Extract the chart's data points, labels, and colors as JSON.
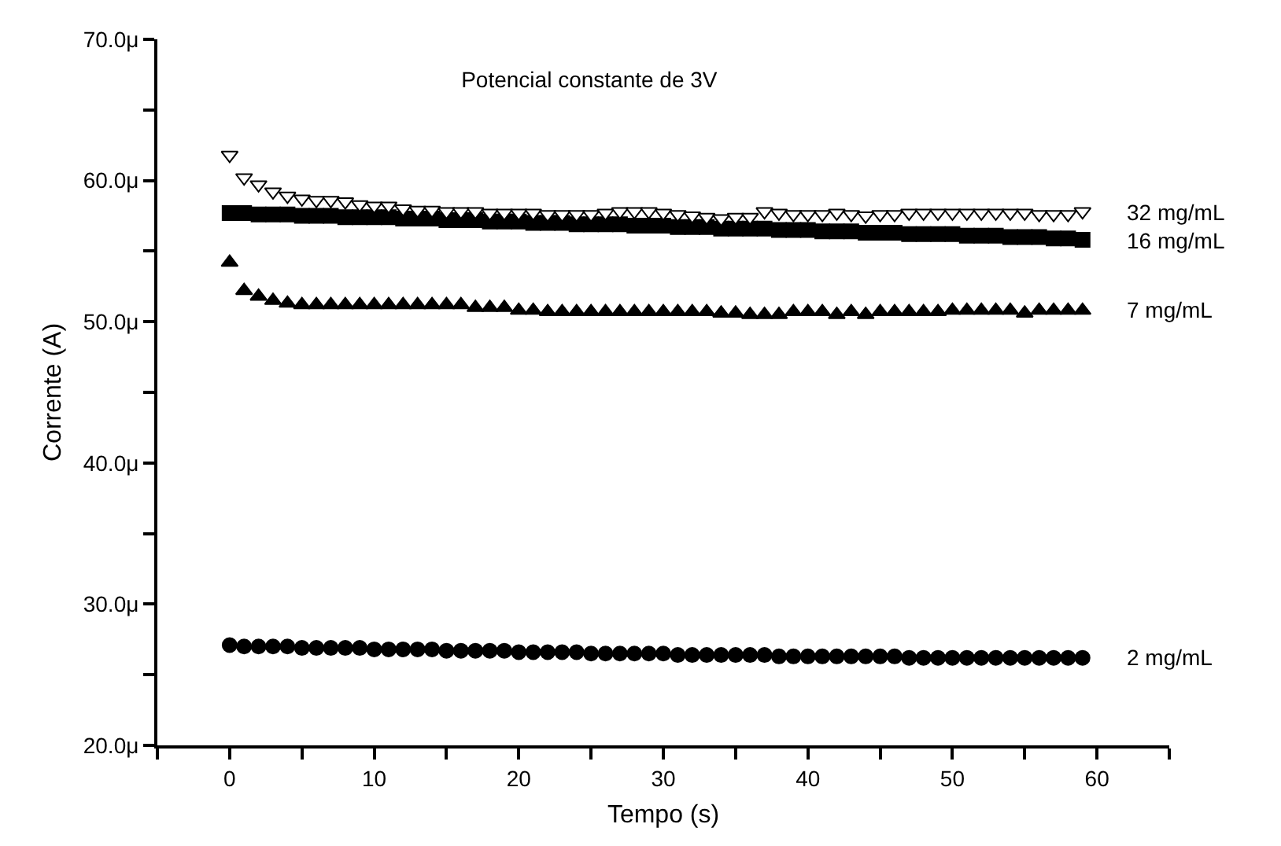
{
  "chart_data": {
    "type": "scatter",
    "title": "Potencial constante de 3V",
    "xlabel": "Tempo (s)",
    "ylabel": "Corrente (A)",
    "x": [
      0,
      1,
      2,
      3,
      4,
      5,
      6,
      7,
      8,
      9,
      10,
      11,
      12,
      13,
      14,
      15,
      16,
      17,
      18,
      19,
      20,
      21,
      22,
      23,
      24,
      25,
      26,
      27,
      28,
      29,
      30,
      31,
      32,
      33,
      34,
      35,
      36,
      37,
      38,
      39,
      40,
      41,
      42,
      43,
      44,
      45,
      46,
      47,
      48,
      49,
      50,
      51,
      52,
      53,
      54,
      55,
      56,
      57,
      58,
      59
    ],
    "xlim": [
      -5,
      65
    ],
    "xticks": [
      {
        "value": -5,
        "label": null
      },
      0,
      {
        "value": 5,
        "label": null
      },
      10,
      {
        "value": 15,
        "label": null
      },
      20,
      {
        "value": 25,
        "label": null
      },
      30,
      {
        "value": 35,
        "label": null
      },
      40,
      {
        "value": 45,
        "label": null
      },
      50,
      {
        "value": 55,
        "label": null
      },
      60,
      {
        "value": 65,
        "label": null
      }
    ],
    "ylim": [
      20,
      70
    ],
    "yticks": [
      {
        "value": 20,
        "label": "20.0μ"
      },
      {
        "value": 25,
        "label": null
      },
      {
        "value": 30,
        "label": "30.0μ"
      },
      {
        "value": 35,
        "label": null
      },
      {
        "value": 40,
        "label": "40.0μ"
      },
      {
        "value": 45,
        "label": null
      },
      {
        "value": 50,
        "label": "50.0μ"
      },
      {
        "value": 55,
        "label": null
      },
      {
        "value": 60,
        "label": "60.0μ"
      },
      {
        "value": 65,
        "label": null
      },
      {
        "value": 70,
        "label": "70.0μ"
      }
    ],
    "grid": false,
    "legend": false,
    "series": [
      {
        "name": "32 mg/mL",
        "color": "#ffffff",
        "marker": "triangle-down",
        "values": [
          61.8,
          60.2,
          59.7,
          59.2,
          58.9,
          58.7,
          58.6,
          58.6,
          58.5,
          58.3,
          58.2,
          58.2,
          58.0,
          57.9,
          57.9,
          57.8,
          57.8,
          57.8,
          57.7,
          57.7,
          57.7,
          57.7,
          57.6,
          57.6,
          57.6,
          57.6,
          57.7,
          57.8,
          57.8,
          57.8,
          57.7,
          57.6,
          57.5,
          57.4,
          57.3,
          57.4,
          57.4,
          57.8,
          57.7,
          57.6,
          57.6,
          57.6,
          57.7,
          57.6,
          57.5,
          57.6,
          57.6,
          57.7,
          57.7,
          57.7,
          57.7,
          57.7,
          57.7,
          57.7,
          57.7,
          57.7,
          57.6,
          57.6,
          57.6,
          57.8
        ]
      },
      {
        "name": "16 mg/mL",
        "color": "#000000",
        "marker": "square",
        "values": [
          57.7,
          57.7,
          57.6,
          57.6,
          57.6,
          57.5,
          57.5,
          57.5,
          57.4,
          57.4,
          57.4,
          57.4,
          57.3,
          57.3,
          57.3,
          57.2,
          57.2,
          57.2,
          57.1,
          57.1,
          57.1,
          57.0,
          57.0,
          57.0,
          56.9,
          56.9,
          56.9,
          56.9,
          56.8,
          56.8,
          56.8,
          56.7,
          56.7,
          56.7,
          56.6,
          56.6,
          56.6,
          56.6,
          56.5,
          56.5,
          56.5,
          56.4,
          56.4,
          56.4,
          56.3,
          56.3,
          56.3,
          56.2,
          56.2,
          56.2,
          56.2,
          56.1,
          56.1,
          56.1,
          56.0,
          56.0,
          56.0,
          55.9,
          55.9,
          55.8
        ]
      },
      {
        "name": "7 mg/mL",
        "color": "#000000",
        "marker": "triangle",
        "values": [
          54.2,
          52.2,
          51.8,
          51.5,
          51.3,
          51.2,
          51.2,
          51.2,
          51.2,
          51.2,
          51.2,
          51.2,
          51.2,
          51.2,
          51.2,
          51.2,
          51.2,
          51.0,
          51.0,
          51.0,
          50.8,
          50.8,
          50.7,
          50.7,
          50.7,
          50.7,
          50.7,
          50.7,
          50.7,
          50.7,
          50.7,
          50.7,
          50.7,
          50.7,
          50.6,
          50.6,
          50.5,
          50.5,
          50.5,
          50.7,
          50.7,
          50.7,
          50.5,
          50.7,
          50.5,
          50.7,
          50.7,
          50.7,
          50.7,
          50.7,
          50.8,
          50.8,
          50.8,
          50.8,
          50.8,
          50.6,
          50.8,
          50.8,
          50.8,
          50.8
        ]
      },
      {
        "name": "2 mg/mL",
        "color": "#000000",
        "marker": "circle",
        "values": [
          27.1,
          27.0,
          27.0,
          27.0,
          27.0,
          26.9,
          26.9,
          26.9,
          26.9,
          26.9,
          26.8,
          26.8,
          26.8,
          26.8,
          26.8,
          26.7,
          26.7,
          26.7,
          26.7,
          26.7,
          26.6,
          26.6,
          26.6,
          26.6,
          26.6,
          26.5,
          26.5,
          26.5,
          26.5,
          26.5,
          26.5,
          26.4,
          26.4,
          26.4,
          26.4,
          26.4,
          26.4,
          26.4,
          26.3,
          26.3,
          26.3,
          26.3,
          26.3,
          26.3,
          26.3,
          26.3,
          26.3,
          26.2,
          26.2,
          26.2,
          26.2,
          26.2,
          26.2,
          26.2,
          26.2,
          26.2,
          26.2,
          26.2,
          26.2,
          26.2
        ]
      }
    ]
  }
}
